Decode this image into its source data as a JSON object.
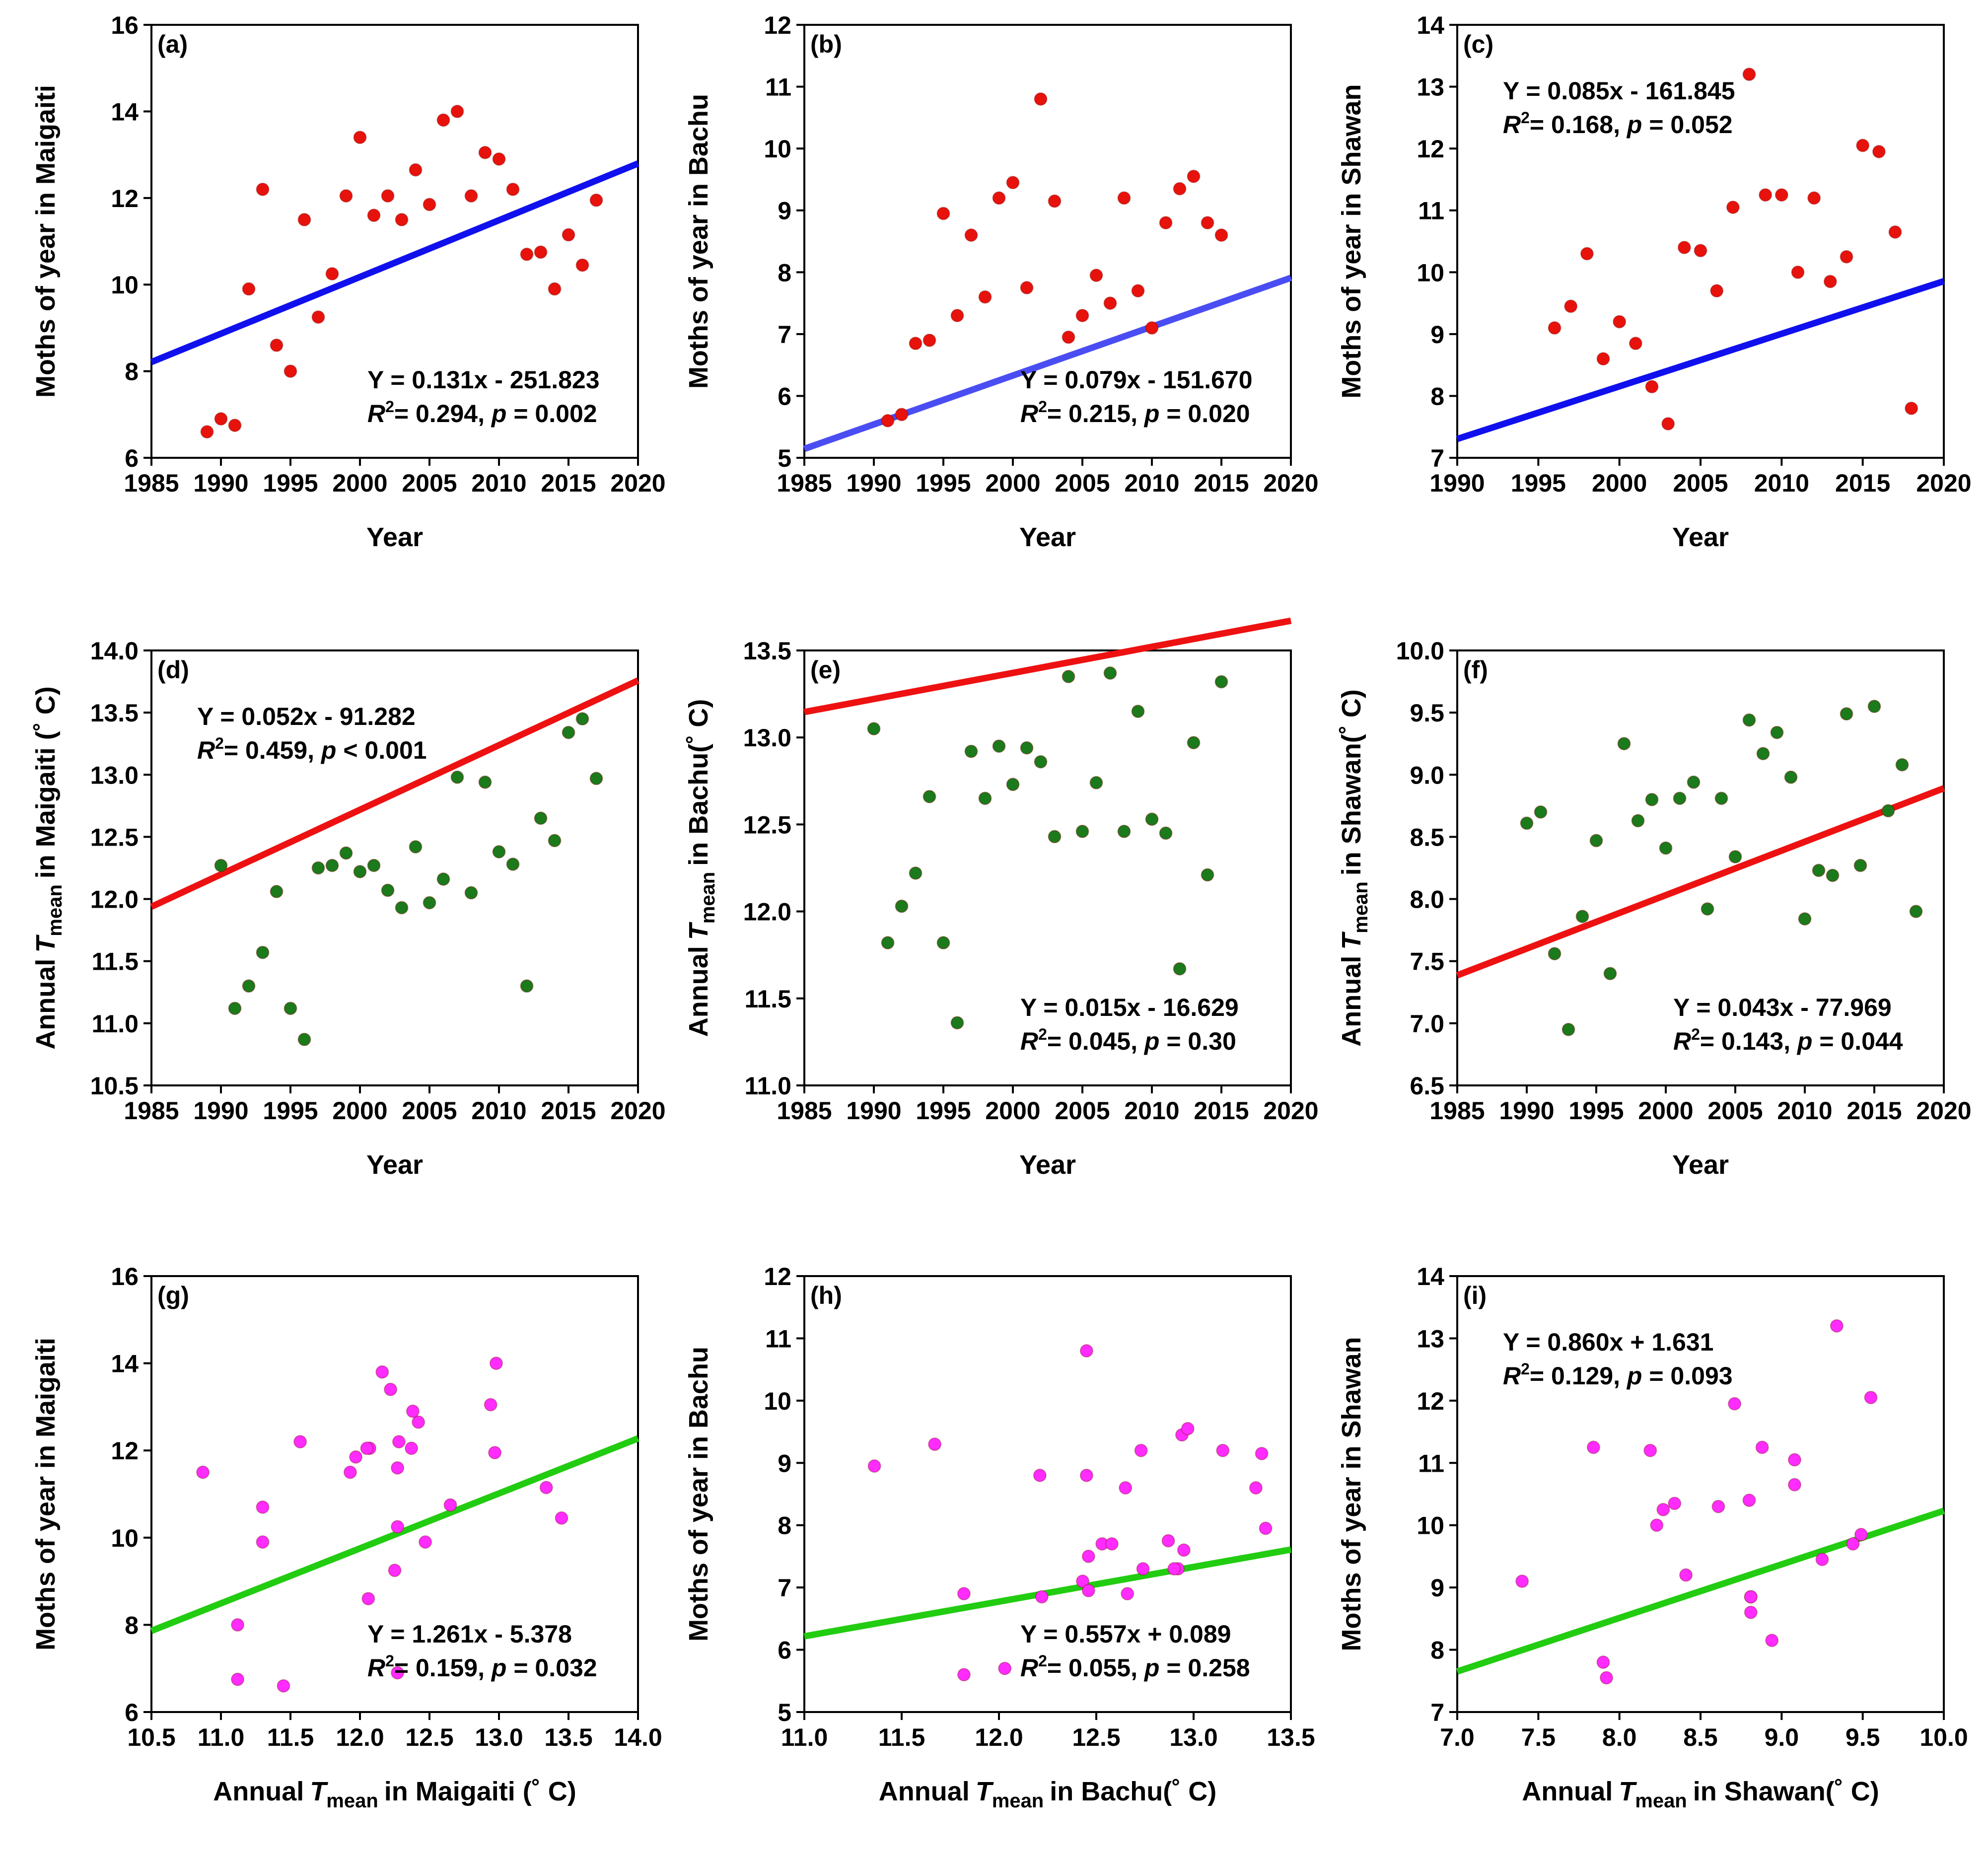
{
  "colors": {
    "moth_point": "#e8120c",
    "temp_point": "#1b7a1b",
    "cross_point": "#ff2bff",
    "blue_line": "#1010ee",
    "light_blue_line": "#4a4ef2",
    "red_line": "#ee1111",
    "green_line": "#22cc11"
  },
  "chart_data": [
    {
      "id": "a",
      "type": "scatter",
      "tag": "(a)",
      "xlabel": "Year",
      "ylabel": "Moths of year in Maigaiti",
      "xlim": [
        1985,
        2020
      ],
      "ylim": [
        6,
        16
      ],
      "xticks": [
        "1985",
        "1990",
        "1995",
        "2000",
        "2005",
        "2010",
        "2015",
        "2020"
      ],
      "yticks": [
        "6",
        "8",
        "10",
        "12",
        "14",
        "16"
      ],
      "x": [
        1989,
        1990,
        1991,
        1992,
        1993,
        1994,
        1995,
        1996,
        1997,
        1998,
        1999,
        2000,
        2001,
        2002,
        2003,
        2004,
        2005,
        2006,
        2007,
        2008,
        2009,
        2010,
        2011,
        2012,
        2013,
        2014,
        2015,
        2016,
        2017
      ],
      "y": [
        6.6,
        6.9,
        6.75,
        9.9,
        12.2,
        8.6,
        8.0,
        11.5,
        9.25,
        10.25,
        12.05,
        13.4,
        11.6,
        12.05,
        11.5,
        12.65,
        11.85,
        13.8,
        14.0,
        12.05,
        13.05,
        12.9,
        12.2,
        10.7,
        10.75,
        9.9,
        11.15,
        10.45,
        11.95
      ],
      "fit": {
        "slope": 0.131,
        "intercept": -251.823
      },
      "eq_line1": "Y = 0.131x - 251.823",
      "eq_r2": "= 0.294,",
      "eq_p": "= 0.002",
      "eq_position": "bottom-right"
    },
    {
      "id": "b",
      "type": "scatter",
      "tag": "(b)",
      "xlabel": "Year",
      "ylabel": "Moths of year in Bachu",
      "xlim": [
        1985,
        2020
      ],
      "ylim": [
        5,
        12
      ],
      "xticks": [
        "1985",
        "1990",
        "1995",
        "2000",
        "2005",
        "2010",
        "2015",
        "2020"
      ],
      "yticks": [
        "5",
        "6",
        "7",
        "8",
        "9",
        "10",
        "11",
        "12"
      ],
      "x": [
        1991,
        1992,
        1993,
        1994,
        1995,
        1996,
        1997,
        1998,
        1999,
        2000,
        2001,
        2002,
        2003,
        2004,
        2005,
        2006,
        2007,
        2008,
        2009,
        2010,
        2011,
        2012,
        2013,
        2014,
        2015
      ],
      "y": [
        5.6,
        5.7,
        6.85,
        6.9,
        8.95,
        7.3,
        8.6,
        7.6,
        9.2,
        9.45,
        7.75,
        10.8,
        9.15,
        6.95,
        7.3,
        7.95,
        7.5,
        9.2,
        7.7,
        7.1,
        8.8,
        9.35,
        9.55,
        8.8,
        8.6
      ],
      "fit": {
        "slope": 0.079,
        "intercept": -151.67
      },
      "eq_line1": "Y = 0.079x - 151.670",
      "eq_r2": "= 0.215,",
      "eq_p": "= 0.020",
      "eq_position": "bottom-right"
    },
    {
      "id": "c",
      "type": "scatter",
      "tag": "(c)",
      "xlabel": "Year",
      "ylabel": "Moths of year in Shawan",
      "xlim": [
        1990,
        2020
      ],
      "ylim": [
        7,
        14
      ],
      "xticks": [
        "1990",
        "1995",
        "2000",
        "2005",
        "2010",
        "2015",
        "2020"
      ],
      "yticks": [
        "7",
        "8",
        "9",
        "10",
        "11",
        "12",
        "13",
        "14"
      ],
      "x": [
        1996,
        1997,
        1998,
        1999,
        2000,
        2001,
        2002,
        2003,
        2004,
        2005,
        2006,
        2007,
        2008,
        2009,
        2010,
        2011,
        2012,
        2013,
        2014,
        2015,
        2016,
        2017,
        2018
      ],
      "y": [
        9.1,
        9.45,
        10.3,
        8.6,
        9.2,
        8.85,
        8.15,
        7.55,
        10.4,
        10.35,
        9.7,
        11.05,
        13.2,
        11.25,
        11.25,
        10.0,
        11.2,
        9.85,
        10.25,
        12.05,
        11.95,
        10.65,
        7.8
      ],
      "fit": {
        "slope": 0.085,
        "intercept": -161.845
      },
      "eq_line1": "Y = 0.085x - 161.845",
      "eq_r2": "= 0.168,",
      "eq_p": "= 0.052",
      "eq_position": "top-left"
    },
    {
      "id": "d",
      "type": "scatter",
      "tag": "(d)",
      "xlabel": "Year",
      "ylabel_pre": "Annual",
      "ylabel_var": "T",
      "ylabel_sub": "mean",
      "ylabel_post": "in Maigaiti (˚ C)",
      "xlim": [
        1985,
        2020
      ],
      "ylim": [
        10.5,
        14.0
      ],
      "xticks": [
        "1985",
        "1990",
        "1995",
        "2000",
        "2005",
        "2010",
        "2015",
        "2020"
      ],
      "yticks": [
        "10.5",
        "11.0",
        "11.5",
        "12.0",
        "12.5",
        "13.0",
        "13.5",
        "14.0"
      ],
      "x": [
        1990,
        1991,
        1992,
        1993,
        1994,
        1995,
        1996,
        1997,
        1998,
        1999,
        2000,
        2001,
        2002,
        2003,
        2004,
        2005,
        2006,
        2007,
        2008,
        2009,
        2010,
        2011,
        2012,
        2013,
        2014,
        2015,
        2016,
        2017
      ],
      "y": [
        12.27,
        11.12,
        11.3,
        11.57,
        12.06,
        11.12,
        10.87,
        12.25,
        12.27,
        12.37,
        12.22,
        12.27,
        12.07,
        11.93,
        12.42,
        11.97,
        12.16,
        12.98,
        12.05,
        12.94,
        12.38,
        12.28,
        11.3,
        12.65,
        12.47,
        13.34,
        13.45,
        12.97
      ],
      "fit": {
        "slope": 0.052,
        "intercept": -91.282
      },
      "eq_line1": "Y = 0.052x - 91.282",
      "eq_r2": "= 0.459,",
      "eq_p": "< 0.001",
      "eq_position": "top-left"
    },
    {
      "id": "e",
      "type": "scatter",
      "tag": "(e)",
      "xlabel": "Year",
      "ylabel_pre": "Annual",
      "ylabel_var": "T",
      "ylabel_sub": "mean",
      "ylabel_post": "in  Bachu(˚ C)",
      "xlim": [
        1985,
        2020
      ],
      "ylim": [
        11.0,
        13.5
      ],
      "xticks": [
        "1985",
        "1990",
        "1995",
        "2000",
        "2005",
        "2010",
        "2015",
        "2020"
      ],
      "yticks": [
        "11.0",
        "11.5",
        "12.0",
        "12.5",
        "13.0",
        "13.5"
      ],
      "x": [
        1990,
        1991,
        1992,
        1993,
        1994,
        1995,
        1996,
        1997,
        1998,
        1999,
        2000,
        2001,
        2002,
        2003,
        2004,
        2005,
        2006,
        2007,
        2008,
        2009,
        2010,
        2011,
        2012,
        2013,
        2014,
        2015
      ],
      "y": [
        13.05,
        11.82,
        12.03,
        12.22,
        12.66,
        11.82,
        11.36,
        12.92,
        12.65,
        12.95,
        12.73,
        12.94,
        12.86,
        12.43,
        13.35,
        12.46,
        12.74,
        13.37,
        12.46,
        13.15,
        12.53,
        12.45,
        11.67,
        12.97,
        12.21,
        13.32
      ],
      "fit": {
        "slope": 0.015,
        "intercept": -16.629
      },
      "eq_line1": "Y = 0.015x - 16.629",
      "eq_r2": "= 0.045,",
      "eq_p": "= 0.30",
      "eq_position": "bottom-right"
    },
    {
      "id": "f",
      "type": "scatter",
      "tag": "(f)",
      "xlabel": "Year",
      "ylabel_pre": "Annual",
      "ylabel_var": "T",
      "ylabel_sub": "mean",
      "ylabel_post": "in Shawan(˚ C)",
      "xlim": [
        1985,
        2020
      ],
      "ylim": [
        6.5,
        10.0
      ],
      "xticks": [
        "1985",
        "1990",
        "1995",
        "2000",
        "2005",
        "2010",
        "2015",
        "2020"
      ],
      "yticks": [
        "6.5",
        "7.0",
        "7.5",
        "8.0",
        "8.5",
        "9.0",
        "9.5",
        "10.0"
      ],
      "x": [
        1990,
        1991,
        1992,
        1993,
        1994,
        1995,
        1996,
        1997,
        1998,
        1999,
        2000,
        2001,
        2002,
        2003,
        2004,
        2005,
        2006,
        2007,
        2008,
        2009,
        2010,
        2011,
        2012,
        2013,
        2014,
        2015,
        2016,
        2017,
        2018
      ],
      "y": [
        8.61,
        8.7,
        7.56,
        6.95,
        7.86,
        8.47,
        7.4,
        9.25,
        8.63,
        8.8,
        8.41,
        8.81,
        8.94,
        7.92,
        8.81,
        8.34,
        9.44,
        9.17,
        9.34,
        8.98,
        7.84,
        8.23,
        8.19,
        9.49,
        8.27,
        9.55,
        8.71,
        9.08,
        7.9
      ],
      "fit": {
        "slope": 0.043,
        "intercept": -77.969
      },
      "eq_line1": "Y = 0.043x - 77.969",
      "eq_r2": "= 0.143,",
      "eq_p": "= 0.044",
      "eq_position": "bottom-right"
    },
    {
      "id": "g",
      "type": "scatter",
      "tag": "(g)",
      "xlabel_pre": "Annual",
      "xlabel_var": "T",
      "xlabel_sub": "mean",
      "xlabel_post": "in Maigaiti (˚ C)",
      "ylabel": "Moths of year in Maigaiti",
      "xlim": [
        10.5,
        14.0
      ],
      "ylim": [
        6,
        16
      ],
      "xticks": [
        "10.5",
        "11.0",
        "11.5",
        "12.0",
        "12.5",
        "13.0",
        "13.5",
        "14.0"
      ],
      "yticks": [
        "6",
        "8",
        "10",
        "12",
        "14",
        "16"
      ],
      "x": [
        12.27,
        11.12,
        11.3,
        11.57,
        12.06,
        11.12,
        10.87,
        12.25,
        12.27,
        12.37,
        12.22,
        12.27,
        12.07,
        11.93,
        12.42,
        11.97,
        12.16,
        12.98,
        12.05,
        12.94,
        12.38,
        12.28,
        11.3,
        12.65,
        12.47,
        13.34,
        13.45,
        12.97,
        11.45
      ],
      "y": [
        6.9,
        6.75,
        9.9,
        12.2,
        8.6,
        8.0,
        11.5,
        9.25,
        10.25,
        12.05,
        13.4,
        11.6,
        12.05,
        11.5,
        12.65,
        11.85,
        13.8,
        14.0,
        12.05,
        13.05,
        12.9,
        12.2,
        10.7,
        10.75,
        9.9,
        11.15,
        10.45,
        11.95,
        6.6
      ],
      "fit": {
        "slope": 1.261,
        "intercept": -5.378
      },
      "eq_line1": "Y = 1.261x - 5.378",
      "eq_r2": "= 0.159,",
      "eq_p": "= 0.032",
      "eq_position": "bottom-right"
    },
    {
      "id": "h",
      "type": "scatter",
      "tag": "(h)",
      "xlabel_pre": "Annual",
      "xlabel_var": "T",
      "xlabel_sub": "mean",
      "xlabel_post": "in  Bachu(˚ C)",
      "ylabel": "Moths of year in Bachu",
      "xlim": [
        11.0,
        13.5
      ],
      "ylim": [
        5,
        12
      ],
      "xticks": [
        "11.0",
        "11.5",
        "12.0",
        "12.5",
        "13.0",
        "13.5"
      ],
      "yticks": [
        "5",
        "6",
        "7",
        "8",
        "9",
        "10",
        "11",
        "12"
      ],
      "x": [
        11.82,
        12.03,
        12.22,
        12.66,
        11.82,
        11.36,
        12.92,
        12.65,
        12.95,
        12.73,
        12.94,
        12.45,
        12.43,
        13.35,
        12.46,
        12.74,
        13.37,
        12.46,
        13.15,
        12.53,
        12.45,
        11.67,
        12.97,
        12.21,
        13.32,
        12.58,
        12.87,
        12.9
      ],
      "y": [
        5.6,
        5.7,
        6.85,
        6.9,
        6.9,
        8.95,
        7.3,
        8.6,
        7.6,
        9.2,
        9.45,
        10.8,
        7.1,
        9.15,
        6.95,
        7.3,
        7.95,
        7.5,
        9.2,
        7.7,
        8.8,
        9.3,
        9.55,
        8.8,
        8.6,
        7.7,
        7.75,
        7.3
      ],
      "fit": {
        "slope": 0.557,
        "intercept": 0.089
      },
      "eq_line1": "Y = 0.557x + 0.089",
      "eq_r2": "= 0.055,",
      "eq_p": "= 0.258",
      "eq_position": "bottom-right"
    },
    {
      "id": "i",
      "type": "scatter",
      "tag": "(i)",
      "xlabel_pre": "Annual",
      "xlabel_var": "T",
      "xlabel_sub": "mean",
      "xlabel_post": "in Shawan(˚ C)",
      "ylabel": "Moths of year in Shawan",
      "xlim": [
        7.0,
        10.0
      ],
      "ylim": [
        7,
        14
      ],
      "xticks": [
        "7.0",
        "7.5",
        "8.0",
        "8.5",
        "9.0",
        "9.5",
        "10.0"
      ],
      "yticks": [
        "7",
        "8",
        "9",
        "10",
        "11",
        "12",
        "13",
        "14"
      ],
      "x": [
        7.4,
        7.84,
        7.9,
        7.92,
        8.19,
        8.23,
        8.27,
        8.34,
        8.41,
        8.61,
        8.71,
        8.8,
        8.81,
        8.81,
        8.88,
        8.94,
        9.08,
        9.25,
        9.34,
        9.44,
        9.49,
        9.55,
        8.81,
        9.08
      ],
      "y": [
        9.1,
        11.25,
        7.8,
        7.55,
        11.2,
        10.0,
        10.25,
        10.35,
        9.2,
        10.3,
        11.95,
        10.4,
        8.6,
        8.85,
        11.25,
        8.15,
        11.05,
        9.45,
        13.2,
        9.7,
        9.85,
        12.05,
        8.85,
        10.65
      ],
      "fit": {
        "slope": 0.86,
        "intercept": 1.631
      },
      "eq_line1": "Y = 0.860x + 1.631",
      "eq_r2": "= 0.129,",
      "eq_p": "= 0.093",
      "eq_position": "top-left"
    }
  ]
}
